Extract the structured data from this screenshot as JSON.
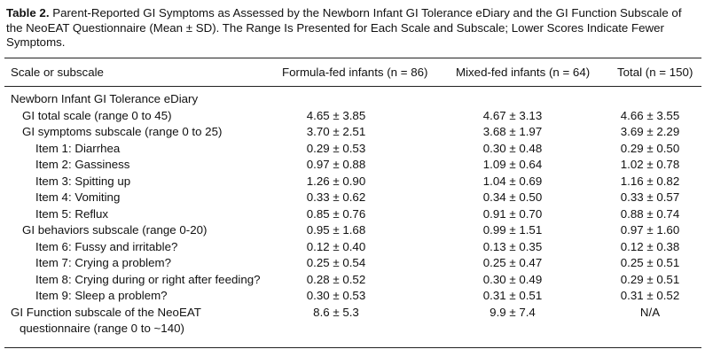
{
  "caption": {
    "label": "Table 2.",
    "text": "Parent-Reported GI Symptoms as Assessed by the Newborn Infant GI Tolerance eDiary and the GI Function Subscale of the NeoEAT Questionnaire (Mean ± SD). The Range Is Presented for Each Scale and Subscale; Lower Scores Indicate Fewer Symptoms."
  },
  "header": {
    "scale": "Scale or subscale",
    "formula_fed": "Formula-fed infants (n = 86)",
    "mixed_fed": "Mixed-fed infants (n = 64)",
    "total": "Total (n = 150)"
  },
  "rows": [
    {
      "label": "Newborn Infant GI Tolerance eDiary",
      "ff": "",
      "mf": "",
      "total": ""
    },
    {
      "label": "GI total scale (range 0 to 45)",
      "ff": "4.65 ± 3.85",
      "mf": "4.67 ± 3.13",
      "total": "4.66 ± 3.55"
    },
    {
      "label": "GI symptoms subscale (range 0 to 25)",
      "ff": "3.70 ± 2.51",
      "mf": "3.68 ± 1.97",
      "total": "3.69 ± 2.29"
    },
    {
      "label": "Item 1: Diarrhea",
      "ff": "0.29 ± 0.53",
      "mf": "0.30 ± 0.48",
      "total": "0.29 ± 0.50"
    },
    {
      "label": "Item 2: Gassiness",
      "ff": "0.97 ± 0.88",
      "mf": "1.09 ± 0.64",
      "total": "1.02 ± 0.78"
    },
    {
      "label": "Item 3: Spitting up",
      "ff": "1.26 ± 0.90",
      "mf": "1.04 ± 0.69",
      "total": "1.16 ± 0.82"
    },
    {
      "label": "Item 4: Vomiting",
      "ff": "0.33 ± 0.62",
      "mf": "0.34 ± 0.50",
      "total": "0.33 ± 0.57"
    },
    {
      "label": "Item 5: Reflux",
      "ff": "0.85 ± 0.76",
      "mf": "0.91 ± 0.70",
      "total": "0.88 ± 0.74"
    },
    {
      "label": "GI behaviors subscale (range 0-20)",
      "ff": "0.95 ± 1.68",
      "mf": "0.99 ± 1.51",
      "total": "0.97 ± 1.60"
    },
    {
      "label": "Item 6: Fussy and irritable?",
      "ff": "0.12 ± 0.40",
      "mf": "0.13 ± 0.35",
      "total": "0.12 ± 0.38"
    },
    {
      "label": "Item 7: Crying a problem?",
      "ff": "0.25 ± 0.54",
      "mf": "0.25 ± 0.47",
      "total": "0.25 ± 0.51"
    },
    {
      "label": "Item 8: Crying during or right after feeding?",
      "ff": "0.28 ± 0.52",
      "mf": "0.30 ± 0.49",
      "total": "0.29 ± 0.51"
    },
    {
      "label": "Item 9: Sleep a problem?",
      "ff": "0.30 ± 0.53",
      "mf": "0.31 ± 0.51",
      "total": "0.31 ± 0.52"
    },
    {
      "label_line1": "GI Function subscale of the NeoEAT",
      "label_line2": "questionnaire (range 0 to ~140)",
      "ff": "8.6 ± 5.3",
      "mf": "9.9 ± 7.4",
      "total": "N/A"
    }
  ]
}
